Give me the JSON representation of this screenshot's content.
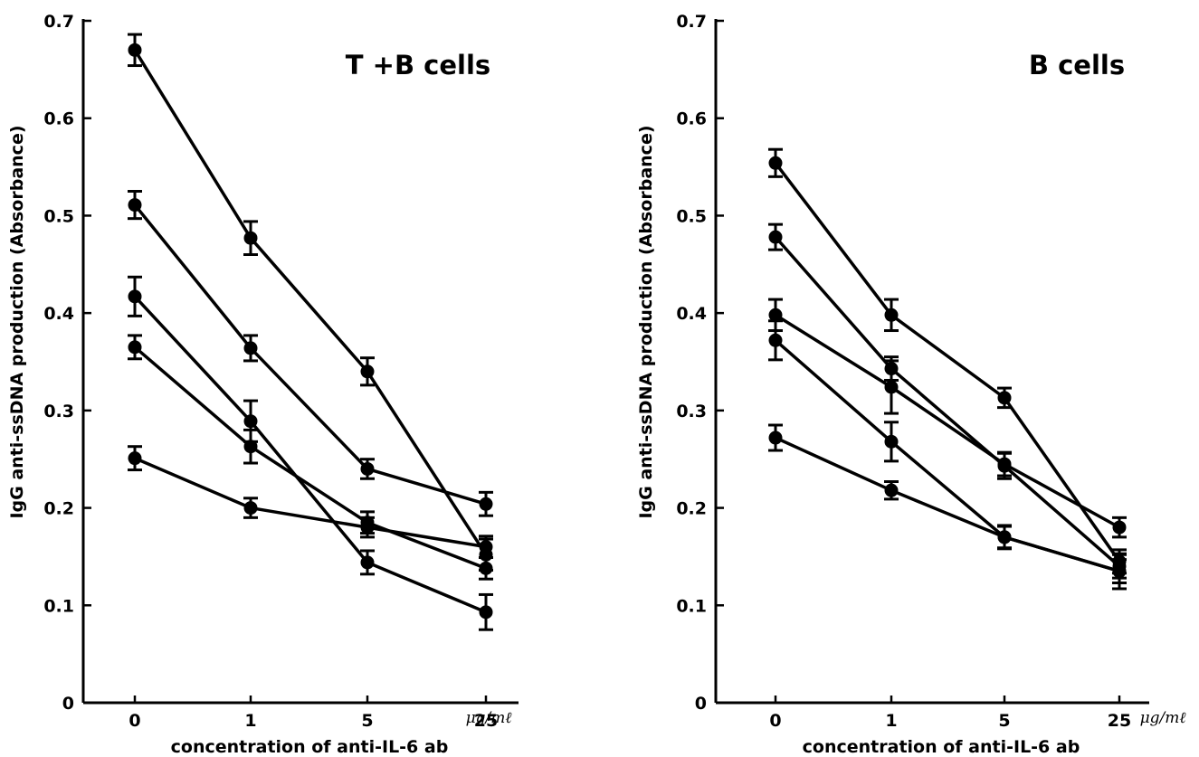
{
  "chart_data": [
    {
      "type": "line",
      "title": "T +B cells",
      "xlabel": "concentration of anti-IL-6 ab",
      "ylabel": "IgG anti-ssDNA production (Absorbance)",
      "x_unit": "μg/mℓ",
      "categories": [
        "0",
        "1",
        "5",
        "25"
      ],
      "y_ticks": [
        "0",
        "0.1",
        "0.2",
        "0.3",
        "0.4",
        "0.5",
        "0.6",
        "0.7"
      ],
      "ylim": [
        0,
        0.7
      ],
      "grid": false,
      "series": [
        {
          "values": [
            0.67,
            0.477,
            0.34,
            0.152
          ],
          "errors": [
            0.016,
            0.017,
            0.014,
            0.016
          ]
        },
        {
          "values": [
            0.511,
            0.364,
            0.24,
            0.204
          ],
          "errors": [
            0.014,
            0.013,
            0.01,
            0.012
          ]
        },
        {
          "values": [
            0.417,
            0.289,
            0.144,
            0.093
          ],
          "errors": [
            0.02,
            0.021,
            0.012,
            0.018
          ]
        },
        {
          "values": [
            0.365,
            0.263,
            0.185,
            0.138
          ],
          "errors": [
            0.012,
            0.017,
            0.011,
            0.011
          ]
        },
        {
          "values": [
            0.251,
            0.2,
            0.18,
            0.16
          ],
          "errors": [
            0.012,
            0.01,
            0.01,
            0.011
          ]
        }
      ]
    },
    {
      "type": "line",
      "title": "B cells",
      "xlabel": "concentration of anti-IL-6 ab",
      "ylabel": "IgG anti-ssDNA production (Absorbance)",
      "x_unit": "μg/mℓ",
      "categories": [
        "0",
        "1",
        "5",
        "25"
      ],
      "y_ticks": [
        "0",
        "0.1",
        "0.2",
        "0.3",
        "0.4",
        "0.5",
        "0.6",
        "0.7"
      ],
      "ylim": [
        0,
        0.7
      ],
      "grid": false,
      "series": [
        {
          "values": [
            0.554,
            0.398,
            0.313,
            0.145
          ],
          "errors": [
            0.014,
            0.016,
            0.01,
            0.012
          ]
        },
        {
          "values": [
            0.478,
            0.343,
            0.243,
            0.14
          ],
          "errors": [
            0.013,
            0.012,
            0.013,
            0.012
          ]
        },
        {
          "values": [
            0.398,
            0.324,
            0.245,
            0.18
          ],
          "errors": [
            0.016,
            0.027,
            0.012,
            0.01
          ]
        },
        {
          "values": [
            0.372,
            0.268,
            0.17,
            0.135
          ],
          "errors": [
            0.02,
            0.02,
            0.012,
            0.012
          ]
        },
        {
          "values": [
            0.272,
            0.218,
            0.17,
            0.135
          ],
          "errors": [
            0.013,
            0.009,
            0.011,
            0.018
          ]
        }
      ]
    }
  ]
}
